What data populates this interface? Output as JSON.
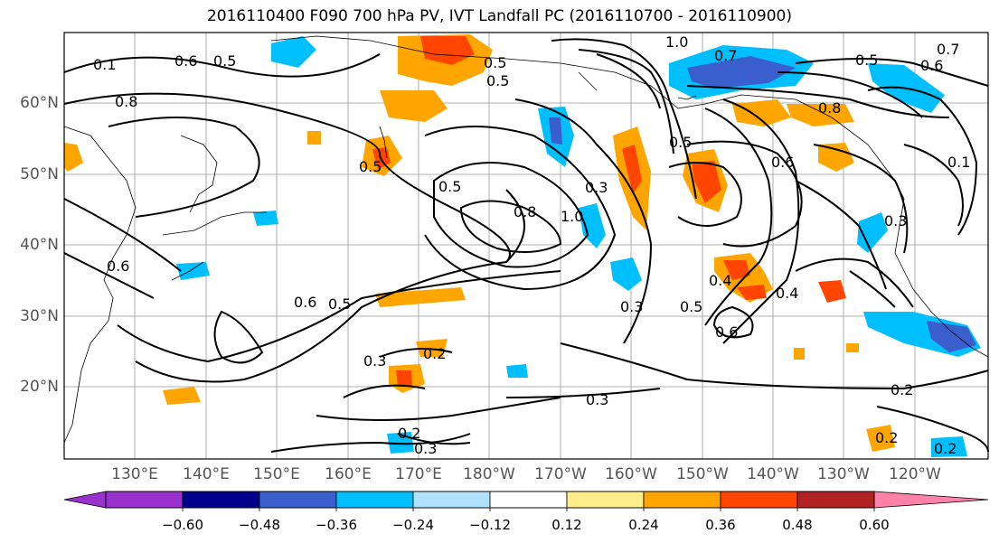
{
  "title": "2016110400 F090 700 hPa PV, IVT Landfall PC (2016110700 - 2016110900)",
  "lat_labels": [
    "60°N",
    "50°N",
    "40°N",
    "30°N",
    "20°N"
  ],
  "lon_labels": [
    "130°E",
    "140°E",
    "150°E",
    "160°E",
    "170°E",
    "180°W",
    "170°W",
    "160°W",
    "150°W",
    "140°W",
    "130°W",
    "120°W"
  ],
  "contour_labels": [
    "0.1",
    "0.6",
    "0.5",
    "0.8",
    "0.5",
    "0.5",
    "1.0",
    "0.7",
    "0.7",
    "0.5",
    "0.6",
    "0.8",
    "0.5",
    "0.5",
    "0.8",
    "0.3",
    "1.0",
    "0.5",
    "0.6",
    "0.6",
    "0.3",
    "0.4",
    "0.5",
    "0.6",
    "0.4",
    "0.6",
    "0.5",
    "0.3",
    "0.2",
    "0.3",
    "0.2",
    "0.2",
    "0.3",
    "0.2",
    "0.2",
    "0.3",
    "0.1"
  ],
  "colorbar": {
    "colors": [
      "#9932cc",
      "#00008b",
      "#3a5fcd",
      "#00bfff",
      "#b0e2ff",
      "#ffffff",
      "#ffec8b",
      "#ffa500",
      "#ff4500",
      "#b22222",
      "#ff82ab"
    ],
    "tick_labels": [
      "−0.60",
      "−0.48",
      "−0.36",
      "−0.24",
      "−0.12",
      "0.12",
      "0.24",
      "0.36",
      "0.48",
      "0.60"
    ]
  }
}
